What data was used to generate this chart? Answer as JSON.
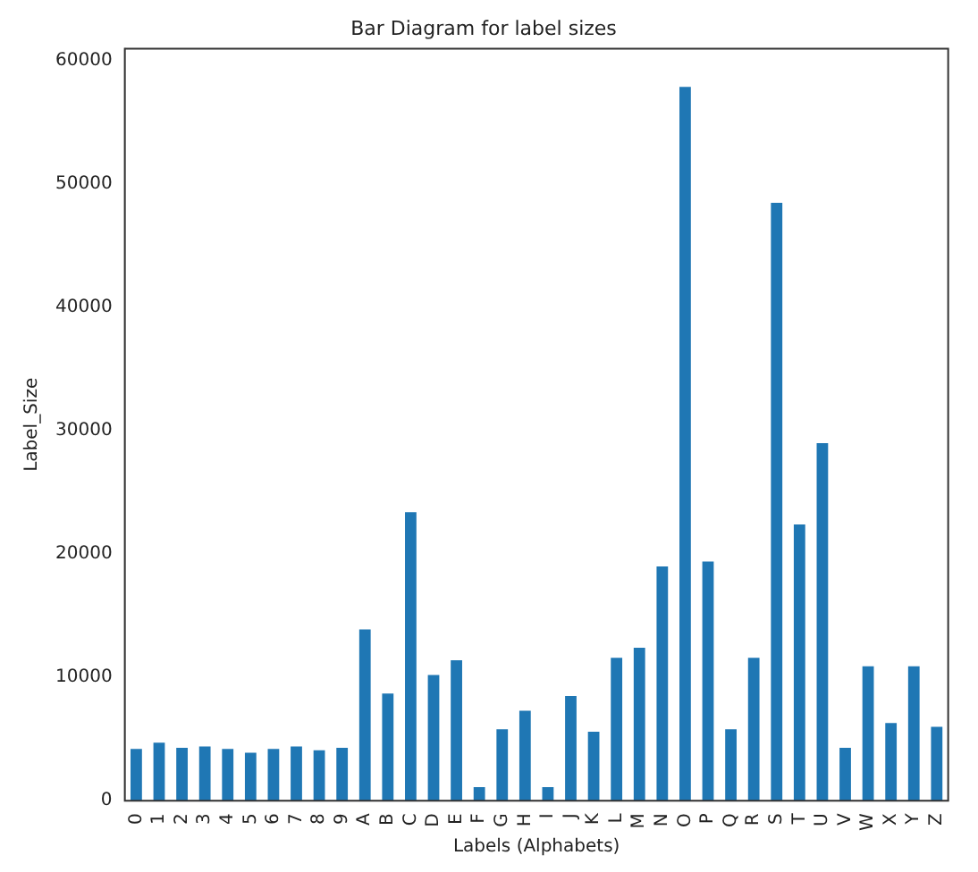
{
  "chart_data": {
    "type": "bar",
    "title": "Bar Diagram for label sizes",
    "xlabel": "Labels (Alphabets)",
    "ylabel": "Label_Size",
    "categories": [
      "0",
      "1",
      "2",
      "3",
      "4",
      "5",
      "6",
      "7",
      "8",
      "9",
      "A",
      "B",
      "C",
      "D",
      "E",
      "F",
      "G",
      "H",
      "I",
      "J",
      "K",
      "L",
      "M",
      "N",
      "O",
      "P",
      "Q",
      "R",
      "S",
      "T",
      "U",
      "V",
      "W",
      "X",
      "Y",
      "Z"
    ],
    "values": [
      4200,
      4700,
      4300,
      4400,
      4200,
      3900,
      4200,
      4400,
      4100,
      4300,
      13900,
      8700,
      23400,
      10200,
      11400,
      1100,
      5800,
      7300,
      1100,
      8500,
      5600,
      11600,
      12400,
      19000,
      57900,
      19400,
      5800,
      11600,
      48500,
      22400,
      29000,
      4300,
      10900,
      6300,
      10900,
      6000
    ],
    "color": "#1f77b4",
    "ylim": [
      0,
      61000
    ],
    "yticks": [
      0,
      10000,
      20000,
      30000,
      40000,
      50000,
      60000
    ],
    "grid": false,
    "legend": false
  }
}
